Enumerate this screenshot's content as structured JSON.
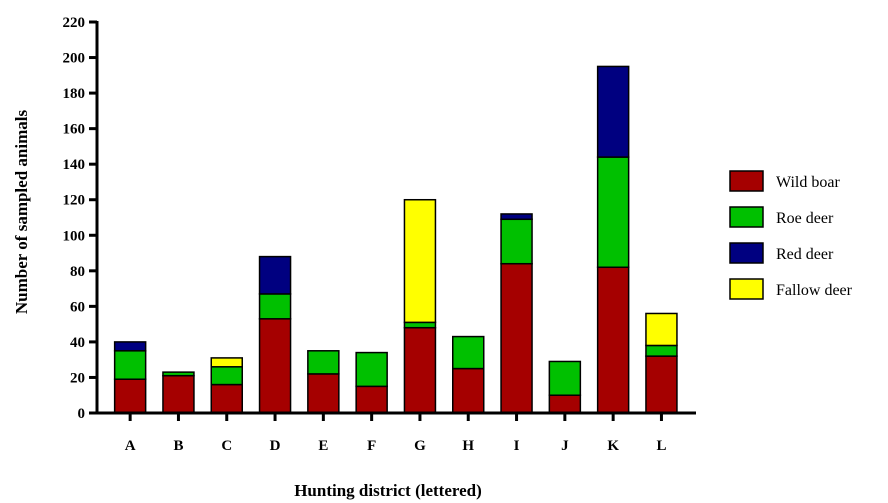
{
  "chart_data": {
    "type": "bar",
    "stacked": true,
    "xlabel": "Hunting district (lettered)",
    "ylabel": "Number of sampled animals",
    "ylim": [
      0,
      220
    ],
    "yticks": [
      0,
      20,
      40,
      60,
      80,
      100,
      120,
      140,
      160,
      180,
      200,
      220
    ],
    "categories": [
      "A",
      "B",
      "C",
      "D",
      "E",
      "F",
      "G",
      "H",
      "I",
      "J",
      "K",
      "L"
    ],
    "series": [
      {
        "name": "Wild boar",
        "color": "#a50000",
        "values": [
          19,
          21,
          16,
          53,
          22,
          15,
          48,
          25,
          84,
          10,
          82,
          32
        ]
      },
      {
        "name": "Roe deer",
        "color": "#00c000",
        "values": [
          16,
          2,
          10,
          14,
          13,
          19,
          3,
          18,
          25,
          19,
          62,
          6
        ]
      },
      {
        "name": "Red deer",
        "color": "#000080",
        "values": [
          5,
          0,
          0,
          21,
          0,
          0,
          0,
          0,
          3,
          0,
          51,
          0
        ]
      },
      {
        "name": "Fallow deer",
        "color": "#ffff00",
        "values": [
          0,
          0,
          5,
          0,
          0,
          0,
          69,
          0,
          0,
          0,
          0,
          18
        ]
      }
    ],
    "legend_position": "right",
    "grid": false
  }
}
